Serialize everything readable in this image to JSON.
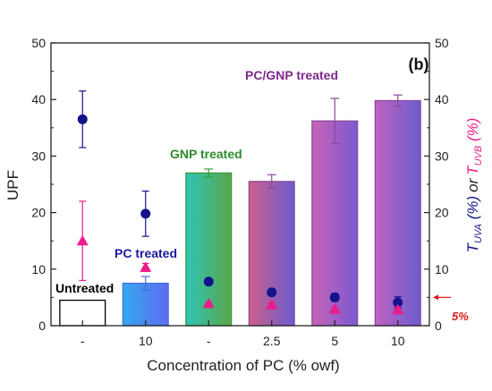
{
  "chart_data": {
    "type": "bar",
    "panel_label": "(b)",
    "xlabel": "Concentration of PC (% owf)",
    "ylabel": "UPF",
    "categories": [
      "-",
      "10",
      "-",
      "2.5",
      "5",
      "10"
    ],
    "group_labels": [
      "Untreated",
      "PC treated",
      "GNP treated",
      "PC/GNP treated"
    ],
    "group_colors": [
      "#000000",
      "#1a1a9c",
      "#2e8b2e",
      "#7b2a8a"
    ],
    "ylim": [
      0,
      50
    ],
    "y_ticks": [
      0,
      10,
      20,
      30,
      40,
      50
    ],
    "bars": {
      "name": "UPF",
      "values": [
        4.5,
        7.5,
        27.0,
        25.5,
        36.2,
        39.8
      ],
      "errors": [
        0.1,
        1.2,
        0.7,
        1.2,
        4.0,
        1.0
      ],
      "fills": [
        [
          "#ffffff",
          "#ffffff"
        ],
        [
          "#33a8f0",
          "#5e6cf0"
        ],
        [
          "#2ec4b6",
          "#5aa64a"
        ],
        [
          "#cf5f8a",
          "#6a5ccf"
        ],
        [
          "#c763b8",
          "#7a5ad0"
        ],
        [
          "#c062c0",
          "#6a5ed0"
        ]
      ],
      "edge_colors": [
        "#000000",
        "#4a6ae0",
        "#3a9a3a",
        "#8a4a9a",
        "#8a4a9a",
        "#8a4a9a"
      ]
    },
    "series": [
      {
        "name_parts": [
          "T",
          "UVA",
          " (%)"
        ],
        "marker": "circle",
        "color": "#13138c",
        "values": [
          36.5,
          19.8,
          7.8,
          5.9,
          5.0,
          4.1
        ],
        "errors": [
          5.0,
          4.0,
          0.3,
          0.3,
          0.7,
          1.0
        ]
      },
      {
        "name_parts": [
          "T",
          "UVB",
          " (%)"
        ],
        "marker": "triangle",
        "color": "#ee1b8c",
        "values": [
          15.0,
          10.3,
          3.9,
          3.7,
          2.9,
          2.8
        ],
        "errors": [
          7.0,
          0.7,
          0.3,
          0.3,
          0.4,
          0.5
        ]
      }
    ],
    "y2label_join": "or",
    "y2lim": [
      0,
      50
    ],
    "y2_ticks": [
      0,
      10,
      20,
      30,
      40,
      50
    ],
    "reference_line": {
      "value": 5,
      "label": "5%",
      "color": "#e01b1b"
    }
  }
}
